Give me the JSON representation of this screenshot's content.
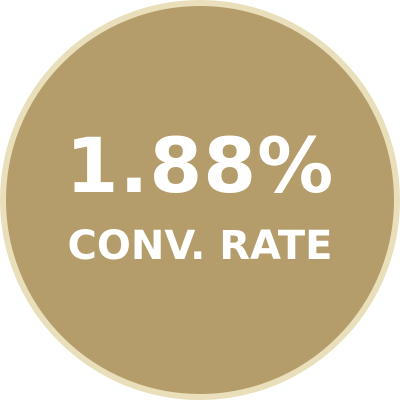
{
  "badge": {
    "value": "1.88%",
    "label": "CONV. RATE"
  },
  "colors": {
    "fill": "#b49d6b",
    "ring": "#e9dfba",
    "text": "#ffffff"
  }
}
